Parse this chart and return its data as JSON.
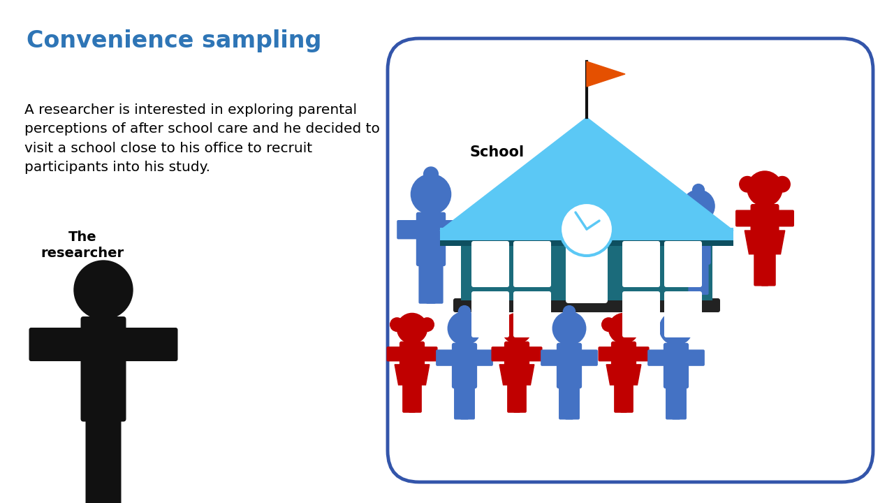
{
  "title": "Convenience sampling",
  "title_color": "#2E75B6",
  "title_fontsize": 24,
  "body_text": "A researcher is interested in exploring parental\nperceptions of after school care and he decided to\nvisit a school close to his office to recruit\nparticipants into his study.",
  "body_fontsize": 14.5,
  "researcher_label": "The\nresearcher",
  "school_label": "School",
  "bg_color": "#FFFFFF",
  "person_blue": "#4472C4",
  "person_red": "#C00000",
  "person_black": "#111111",
  "bracket_color": "#3355AA",
  "teal_dark": "#1B6B7B",
  "light_blue": "#5BC8F5",
  "orange": "#E55000",
  "ground_color": "#222222",
  "clock_color": "#5BC8F5"
}
